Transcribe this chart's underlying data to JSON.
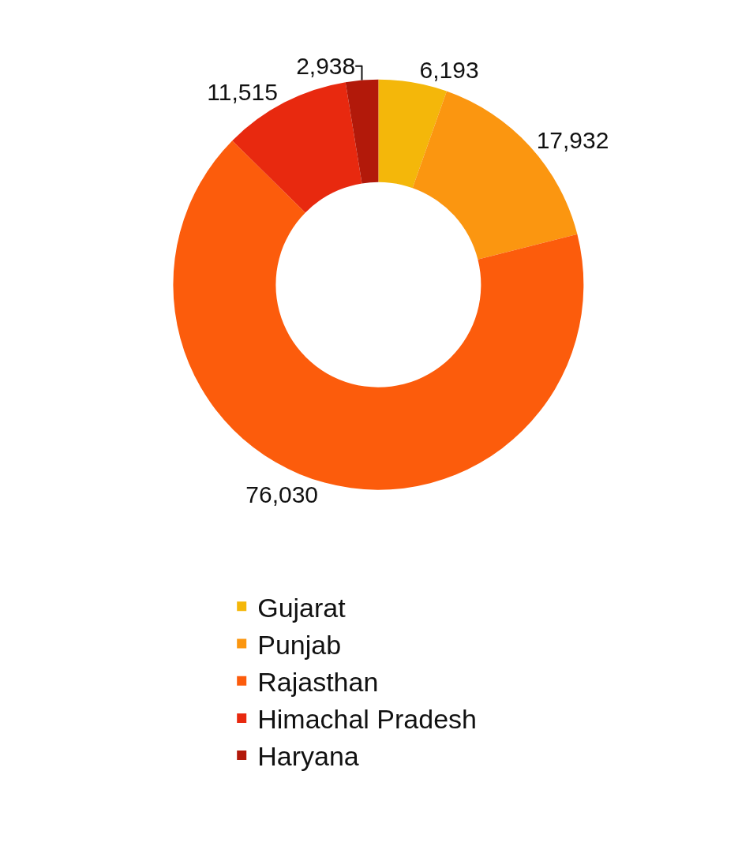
{
  "chart_data": {
    "type": "donut",
    "categories": [
      "Gujarat",
      "Punjab",
      "Rajasthan",
      "Himachal Pradesh",
      "Haryana"
    ],
    "values": [
      6193,
      17932,
      76030,
      11515,
      2938
    ],
    "value_labels": [
      "6,193",
      "17,932",
      "76,030",
      "11,515",
      "2,938"
    ],
    "colors": [
      "#f4b70a",
      "#fb9610",
      "#fc5c0c",
      "#e8290f",
      "#b2190a"
    ],
    "legend": "bottom"
  }
}
